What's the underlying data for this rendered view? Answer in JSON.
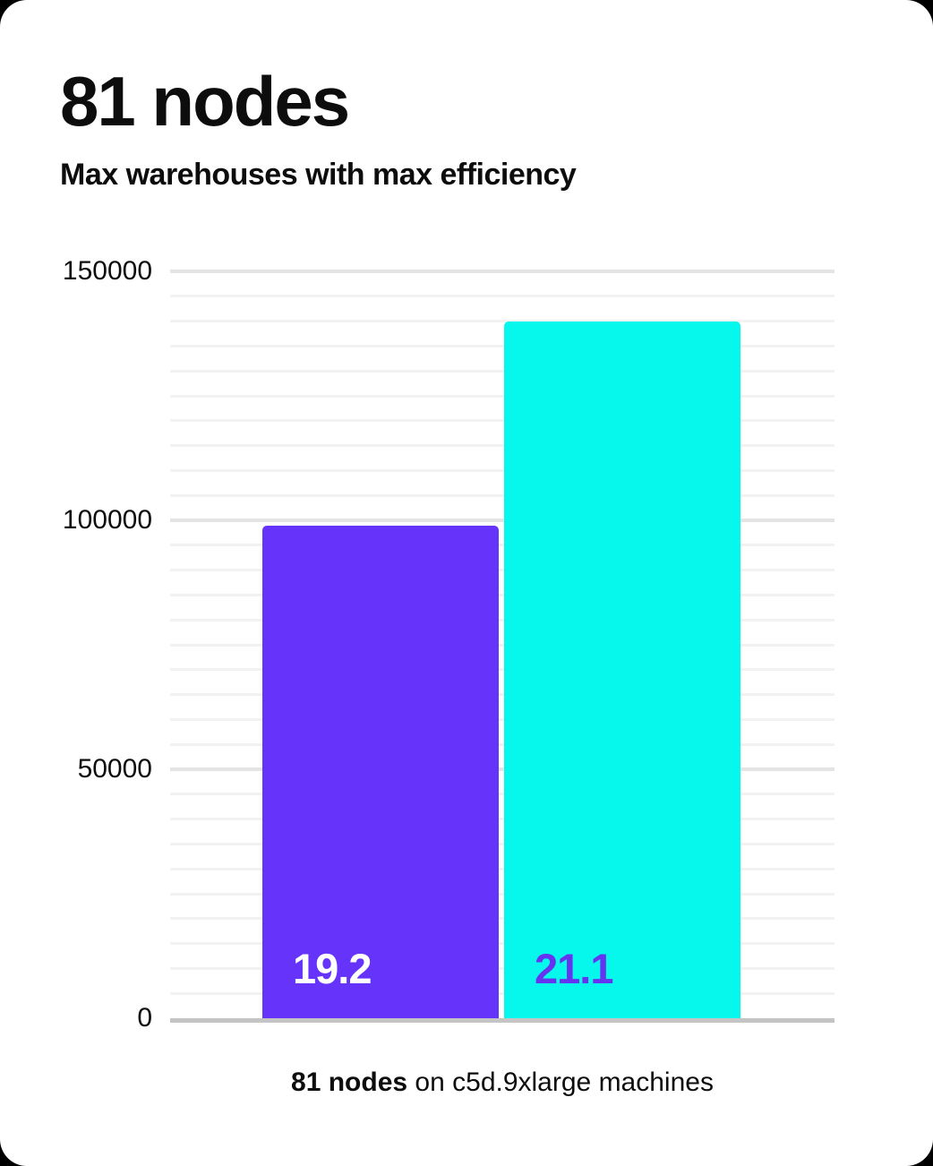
{
  "card": {
    "title": "81 nodes",
    "subtitle": "Max warehouses with max efficiency",
    "caption": {
      "bold": "81 nodes",
      "rest": " on c5d.9xlarge machines"
    }
  },
  "chart_data": {
    "type": "bar",
    "title": "81 nodes",
    "subtitle": "Max warehouses with max efficiency",
    "caption": "81 nodes on c5d.9xlarge machines",
    "categories": [
      "19.2",
      "21.1"
    ],
    "series": [
      {
        "name": "Max warehouses",
        "values": [
          99000,
          140000
        ]
      }
    ],
    "bars": [
      {
        "label": "19.2",
        "value": 99000,
        "color": "#6633fb",
        "label_color": "#ffffff"
      },
      {
        "label": "21.1",
        "value": 140000,
        "color": "#06f7eb",
        "label_color": "#6633f0"
      }
    ],
    "xlabel": "",
    "ylabel": "",
    "ylim": [
      0,
      150000
    ],
    "yticks": [
      0,
      50000,
      100000,
      150000
    ],
    "minor_gridline_step": 5000,
    "grid": true,
    "legend": "none",
    "colors": {
      "minor_gridline": "#f2f2f2",
      "major_gridline": "#e4e4e4",
      "axis_line": "#c4c4c4",
      "text": "#0d0d0d"
    }
  }
}
